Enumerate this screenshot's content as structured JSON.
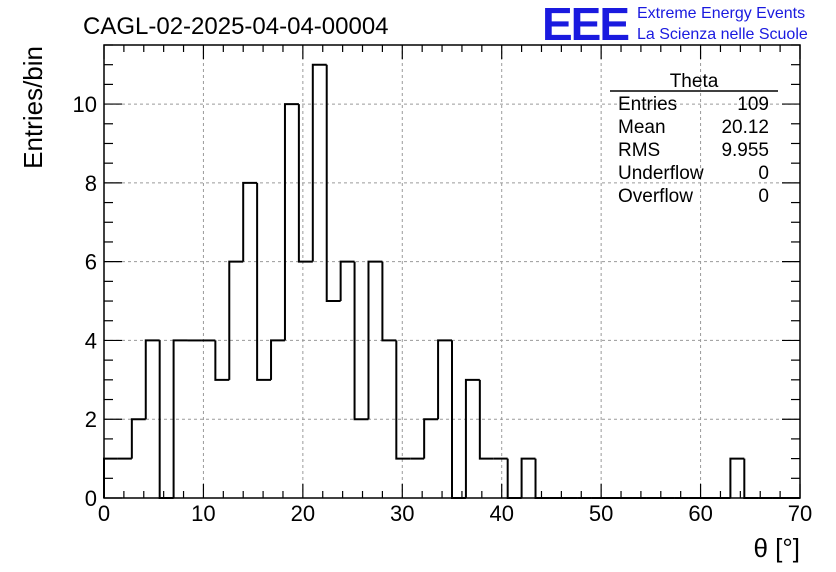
{
  "header": {
    "title": "CAGL-02-2025-04-04-00004",
    "logo_text": "EEE",
    "brand_line1": "Extreme Energy Events",
    "brand_line2": "La Scienza nelle Scuole",
    "brand_color": "#1a1adf"
  },
  "stats": {
    "name": "Theta",
    "rows": [
      {
        "label": "Entries",
        "value": "109"
      },
      {
        "label": "Mean",
        "value": "20.12"
      },
      {
        "label": "RMS",
        "value": "9.955"
      },
      {
        "label": "Underflow",
        "value": "0"
      },
      {
        "label": "Overflow",
        "value": "0"
      }
    ]
  },
  "chart_data": {
    "type": "bar",
    "title": "CAGL-02-2025-04-04-00004",
    "xlabel": "θ [°]",
    "ylabel": "Entries/bin",
    "xlim": [
      0,
      70
    ],
    "ylim": [
      0,
      11.5
    ],
    "grid": true,
    "bin_width": 1.4,
    "values": [
      1,
      1,
      2,
      4,
      0,
      4,
      4,
      4,
      3,
      6,
      8,
      3,
      4,
      10,
      6,
      11,
      5,
      6,
      2,
      6,
      4,
      1,
      1,
      2,
      4,
      0,
      3,
      1,
      1,
      0,
      1,
      0,
      0,
      0,
      0,
      0,
      0,
      0,
      0,
      0,
      0,
      0,
      0,
      0,
      0,
      1,
      0,
      0,
      0,
      0
    ],
    "xticks": [
      0,
      10,
      20,
      30,
      40,
      50,
      60,
      70
    ],
    "yticks": [
      0,
      2,
      4,
      6,
      8,
      10
    ]
  }
}
